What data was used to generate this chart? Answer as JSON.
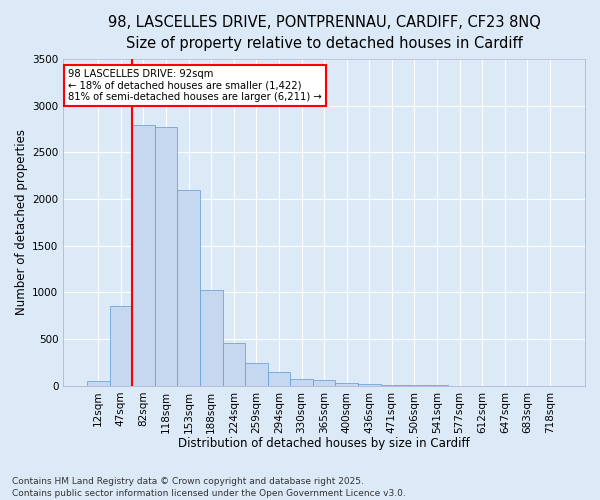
{
  "title_line1": "98, LASCELLES DRIVE, PONTPRENNAU, CARDIFF, CF23 8NQ",
  "title_line2": "Size of property relative to detached houses in Cardiff",
  "xlabel": "Distribution of detached houses by size in Cardiff",
  "ylabel": "Number of detached properties",
  "bar_color": "#c5d8f0",
  "bar_edge_color": "#5b9bd5",
  "background_color": "#dce9f7",
  "plot_bg_color": "#dce9f7",
  "grid_color": "#ffffff",
  "annotation_text": "98 LASCELLES DRIVE: 92sqm\n← 18% of detached houses are smaller (1,422)\n81% of semi-detached houses are larger (6,211) →",
  "vline_color": "red",
  "footer_text": "Contains HM Land Registry data © Crown copyright and database right 2025.\nContains public sector information licensed under the Open Government Licence v3.0.",
  "categories": [
    "12sqm",
    "47sqm",
    "82sqm",
    "118sqm",
    "153sqm",
    "188sqm",
    "224sqm",
    "259sqm",
    "294sqm",
    "330sqm",
    "365sqm",
    "400sqm",
    "436sqm",
    "471sqm",
    "506sqm",
    "541sqm",
    "577sqm",
    "612sqm",
    "647sqm",
    "683sqm",
    "718sqm"
  ],
  "values": [
    55,
    850,
    2790,
    2770,
    2100,
    1030,
    455,
    250,
    150,
    75,
    58,
    35,
    18,
    12,
    5,
    4,
    2,
    2,
    1,
    1,
    1
  ],
  "vline_position": 1.5,
  "ylim": [
    0,
    3500
  ],
  "yticks": [
    0,
    500,
    1000,
    1500,
    2000,
    2500,
    3000,
    3500
  ],
  "annotation_box_color": "white",
  "annotation_box_edge": "red",
  "title_fontsize": 10.5,
  "axis_label_fontsize": 8.5,
  "tick_fontsize": 7.5,
  "footer_fontsize": 6.5
}
